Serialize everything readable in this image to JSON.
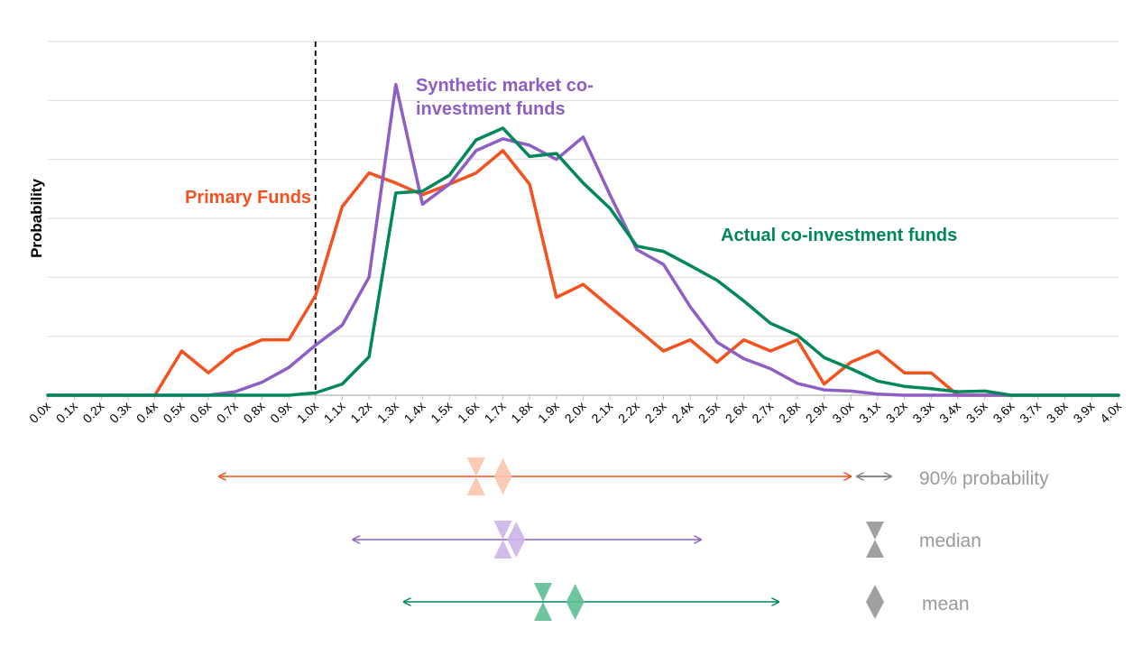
{
  "chart_data": {
    "type": "line",
    "ylabel": "Probability",
    "xlabel": "",
    "x": [
      0.0,
      0.1,
      0.2,
      0.3,
      0.4,
      0.5,
      0.6,
      0.7,
      0.8,
      0.9,
      1.0,
      1.1,
      1.2,
      1.3,
      1.4,
      1.5,
      1.6,
      1.7,
      1.8,
      1.9,
      2.0,
      2.1,
      2.2,
      2.3,
      2.4,
      2.5,
      2.6,
      2.7,
      2.8,
      2.9,
      3.0,
      3.1,
      3.2,
      3.3,
      3.4,
      3.5,
      3.6,
      3.7,
      3.8,
      3.9,
      4.0
    ],
    "x_tick_labels": [
      "0.0x",
      "0.1x",
      "0.2x",
      "0.3x",
      "0.4x",
      "0.5x",
      "0.6x",
      "0.7x",
      "0.8x",
      "0.9x",
      "1.0x",
      "1.1x",
      "1.2x",
      "1.3x",
      "1.4x",
      "1.5x",
      "1.6x",
      "1.7x",
      "1.8x",
      "1.9x",
      "2.0x",
      "2.1x",
      "2.2x",
      "2.3x",
      "2.4x",
      "2.5x",
      "2.6x",
      "2.7x",
      "2.8x",
      "2.9x",
      "3.0x",
      "3.1x",
      "3.2x",
      "3.3x",
      "3.4x",
      "3.5x",
      "3.6x",
      "3.7x",
      "3.8x",
      "3.9x",
      "4.0x"
    ],
    "ylim": [
      0,
      6
    ],
    "y_gridlines": [
      1,
      2,
      3,
      4,
      5,
      6
    ],
    "y_tick_labels_shown": false,
    "grid": true,
    "reference_line": {
      "x": 1.0,
      "style": "dashed"
    },
    "series": [
      {
        "name": "Primary Funds",
        "color": "#f4511e",
        "values": [
          0,
          0,
          0,
          0,
          0,
          0.75,
          0.38,
          0.75,
          0.94,
          0.94,
          1.69,
          3.2,
          3.77,
          3.6,
          3.4,
          3.58,
          3.77,
          4.15,
          3.58,
          1.66,
          1.88,
          1.5,
          1.13,
          0.75,
          0.94,
          0.56,
          0.94,
          0.75,
          0.94,
          0.19,
          0.56,
          0.75,
          0.38,
          0.38,
          0,
          0,
          0,
          0,
          0,
          0,
          0
        ]
      },
      {
        "name": "Synthetic market co-investment funds",
        "color": "#8e5ec4",
        "values": [
          0,
          0,
          0,
          0,
          0,
          0,
          0,
          0.06,
          0.22,
          0.47,
          0.85,
          1.19,
          2.0,
          5.27,
          3.24,
          3.58,
          4.15,
          4.35,
          4.24,
          4.0,
          4.38,
          3.4,
          2.47,
          2.22,
          1.5,
          0.9,
          0.62,
          0.45,
          0.2,
          0.09,
          0.07,
          0.02,
          0,
          0,
          0,
          0,
          0,
          0,
          0,
          0,
          0
        ]
      },
      {
        "name": "Actual co-investment funds",
        "color": "#00875a",
        "values": [
          0,
          0,
          0,
          0,
          0,
          0,
          0,
          0,
          0,
          0,
          0.04,
          0.19,
          0.65,
          3.43,
          3.46,
          3.73,
          4.33,
          4.53,
          4.05,
          4.1,
          3.6,
          3.17,
          2.53,
          2.44,
          2.2,
          1.95,
          1.6,
          1.22,
          1.02,
          0.64,
          0.45,
          0.24,
          0.15,
          0.11,
          0.06,
          0.07,
          0,
          0,
          0,
          0,
          0
        ]
      }
    ],
    "ranges": [
      {
        "series": "Primary Funds",
        "color": "#f4511e",
        "low": 0.64,
        "high": 3.0,
        "median": 1.6,
        "mean": 1.7
      },
      {
        "series": "Synthetic market co-investment funds",
        "color": "#8e5ec4",
        "low": 1.14,
        "high": 2.44,
        "median": 1.7,
        "mean": 1.75
      },
      {
        "series": "Actual co-investment funds",
        "color": "#00875a",
        "low": 1.33,
        "high": 2.73,
        "median": 1.85,
        "mean": 1.97
      }
    ],
    "series_labels": {
      "primary": "Primary Funds",
      "synthetic_line1": "Synthetic market co-",
      "synthetic_line2": "investment funds",
      "actual": "Actual co-investment funds"
    },
    "legend": {
      "placement": "bottom-right",
      "items": [
        {
          "icon": "double-arrow-icon",
          "label": "90% probability"
        },
        {
          "icon": "hourglass-icon",
          "label": "median"
        },
        {
          "icon": "diamond-icon",
          "label": "mean"
        }
      ],
      "color": "#999999"
    }
  }
}
